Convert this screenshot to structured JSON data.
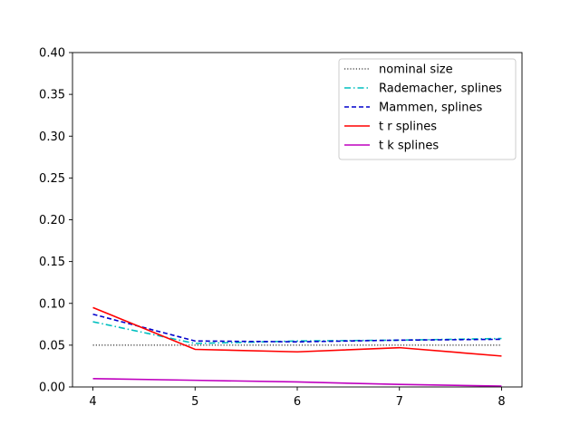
{
  "chart_data": {
    "type": "line",
    "title": "",
    "xlabel": "",
    "ylabel": "",
    "x": [
      4,
      5,
      6,
      7,
      8
    ],
    "xlim": [
      3.8,
      8.2
    ],
    "ylim": [
      0.0,
      0.4
    ],
    "xticks": [
      4,
      5,
      6,
      7,
      8
    ],
    "yticks": [
      0.0,
      0.05,
      0.1,
      0.15,
      0.2,
      0.25,
      0.3,
      0.35,
      0.4
    ],
    "xtick_labels": [
      "4",
      "5",
      "6",
      "7",
      "8"
    ],
    "ytick_labels": [
      "0.00",
      "0.05",
      "0.10",
      "0.15",
      "0.20",
      "0.25",
      "0.30",
      "0.35",
      "0.40"
    ],
    "grid": false,
    "legend_position": "top-right",
    "series": [
      {
        "name": "nominal size",
        "color": "#000000",
        "style": "dotted",
        "values": [
          0.05,
          0.05,
          0.05,
          0.05,
          0.05
        ]
      },
      {
        "name": "Rademacher, splines",
        "color": "#00bfbf",
        "style": "dashdot",
        "values": [
          0.078,
          0.052,
          0.055,
          0.056,
          0.058
        ]
      },
      {
        "name": "Mammen, splines",
        "color": "#0000cc",
        "style": "dashed",
        "values": [
          0.087,
          0.055,
          0.054,
          0.056,
          0.057
        ]
      },
      {
        "name": "t r splines",
        "color": "#ff0000",
        "style": "solid",
        "values": [
          0.095,
          0.045,
          0.042,
          0.047,
          0.037
        ]
      },
      {
        "name": "t k splines",
        "color": "#bf00bf",
        "style": "solid",
        "values": [
          0.01,
          0.008,
          0.006,
          0.003,
          0.001
        ]
      }
    ]
  }
}
